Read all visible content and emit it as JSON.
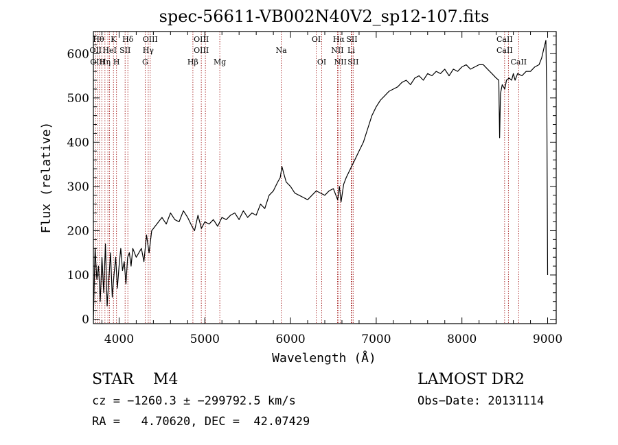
{
  "chart_data": {
    "type": "line",
    "title": "spec-56611-VB002N40V2_sp12-107.fits",
    "xlabel": "Wavelength (Å)",
    "ylabel": "Flux (relative)",
    "xlim": [
      3700,
      9100
    ],
    "ylim": [
      -10,
      650
    ],
    "xticks": [
      4000,
      5000,
      6000,
      7000,
      8000,
      9000
    ],
    "yticks": [
      0,
      100,
      200,
      300,
      400,
      500,
      600
    ],
    "grid": false,
    "series": [
      {
        "color": "#000000",
        "x": [
          3700,
          3720,
          3740,
          3760,
          3780,
          3800,
          3820,
          3840,
          3860,
          3880,
          3900,
          3920,
          3940,
          3960,
          3980,
          4000,
          4020,
          4040,
          4060,
          4080,
          4100,
          4120,
          4140,
          4160,
          4180,
          4200,
          4230,
          4260,
          4290,
          4320,
          4350,
          4380,
          4420,
          4460,
          4500,
          4550,
          4600,
          4650,
          4700,
          4750,
          4800,
          4850,
          4880,
          4920,
          4960,
          5000,
          5050,
          5100,
          5150,
          5200,
          5250,
          5300,
          5350,
          5400,
          5450,
          5500,
          5550,
          5600,
          5650,
          5700,
          5750,
          5800,
          5850,
          5880,
          5900,
          5920,
          5950,
          6000,
          6050,
          6100,
          6150,
          6200,
          6250,
          6300,
          6350,
          6400,
          6450,
          6500,
          6550,
          6570,
          6590,
          6620,
          6650,
          6700,
          6750,
          6800,
          6850,
          6900,
          6950,
          7000,
          7050,
          7100,
          7150,
          7200,
          7250,
          7300,
          7350,
          7400,
          7450,
          7500,
          7550,
          7600,
          7650,
          7700,
          7750,
          7800,
          7850,
          7900,
          7950,
          8000,
          8050,
          8100,
          8150,
          8200,
          8250,
          8300,
          8350,
          8400,
          8430,
          8440,
          8450,
          8470,
          8500,
          8520,
          8550,
          8580,
          8600,
          8620,
          8650,
          8700,
          8750,
          8800,
          8850,
          8900,
          8930,
          8960,
          8980,
          8990,
          9000
        ],
        "y": [
          0,
          160,
          90,
          120,
          40,
          140,
          60,
          170,
          30,
          90,
          150,
          50,
          100,
          140,
          70,
          120,
          160,
          110,
          130,
          80,
          140,
          150,
          120,
          160,
          150,
          140,
          150,
          160,
          130,
          190,
          150,
          200,
          210,
          220,
          230,
          215,
          240,
          225,
          220,
          245,
          230,
          210,
          200,
          235,
          205,
          220,
          215,
          225,
          210,
          230,
          225,
          235,
          240,
          225,
          245,
          230,
          240,
          235,
          260,
          250,
          280,
          290,
          310,
          320,
          345,
          330,
          310,
          300,
          285,
          280,
          275,
          270,
          280,
          290,
          285,
          280,
          290,
          295,
          270,
          300,
          265,
          305,
          320,
          340,
          360,
          380,
          400,
          430,
          460,
          480,
          495,
          505,
          515,
          520,
          525,
          535,
          540,
          530,
          545,
          550,
          540,
          555,
          550,
          560,
          555,
          565,
          550,
          565,
          560,
          570,
          575,
          565,
          570,
          575,
          575,
          565,
          555,
          545,
          540,
          410,
          510,
          530,
          520,
          540,
          545,
          540,
          555,
          540,
          555,
          550,
          560,
          560,
          570,
          575,
          590,
          615,
          630,
          500,
          100
        ]
      }
    ],
    "lines": [
      {
        "wavelength": 3726
      },
      {
        "wavelength": 3750
      },
      {
        "wavelength": 3771
      },
      {
        "wavelength": 3798
      },
      {
        "wavelength": 3835
      },
      {
        "wavelength": 3869
      },
      {
        "wavelength": 3889
      },
      {
        "wavelength": 3934
      },
      {
        "wavelength": 3970
      },
      {
        "wavelength": 4070
      },
      {
        "wavelength": 4102
      },
      {
        "wavelength": 4304
      },
      {
        "wavelength": 4340
      },
      {
        "wavelength": 4363
      },
      {
        "wavelength": 4861
      },
      {
        "wavelength": 4959
      },
      {
        "wavelength": 5007
      },
      {
        "wavelength": 5175
      },
      {
        "wavelength": 5892
      },
      {
        "wavelength": 6300
      },
      {
        "wavelength": 6364
      },
      {
        "wavelength": 6548
      },
      {
        "wavelength": 6563
      },
      {
        "wavelength": 6583
      },
      {
        "wavelength": 6708
      },
      {
        "wavelength": 6716
      },
      {
        "wavelength": 6731
      },
      {
        "wavelength": 8498
      },
      {
        "wavelength": 8542
      },
      {
        "wavelength": 8662
      }
    ],
    "line_labels": [
      {
        "text": "Hθ",
        "wavelength": 3760,
        "row": 0
      },
      {
        "text": "K",
        "wavelength": 3934,
        "row": 0
      },
      {
        "text": "Hδ",
        "wavelength": 4102,
        "row": 0
      },
      {
        "text": "OIII",
        "wavelength": 4363,
        "row": 0
      },
      {
        "text": "OIII",
        "wavelength": 4959,
        "row": 0
      },
      {
        "text": "OI",
        "wavelength": 6300,
        "row": 0
      },
      {
        "text": "Hα",
        "wavelength": 6563,
        "row": 0
      },
      {
        "text": "SII",
        "wavelength": 6716,
        "row": 0
      },
      {
        "text": "CaII",
        "wavelength": 8498,
        "row": 0
      },
      {
        "text": "OII",
        "wavelength": 3726,
        "row": 1
      },
      {
        "text": "HeI",
        "wavelength": 3889,
        "row": 1
      },
      {
        "text": "SII",
        "wavelength": 4070,
        "row": 1
      },
      {
        "text": "Hγ",
        "wavelength": 4340,
        "row": 1
      },
      {
        "text": "OIII",
        "wavelength": 4959,
        "row": 1
      },
      {
        "text": "Na",
        "wavelength": 5892,
        "row": 1
      },
      {
        "text": "NII",
        "wavelength": 6548,
        "row": 1
      },
      {
        "text": "Li",
        "wavelength": 6708,
        "row": 1
      },
      {
        "text": "CaII",
        "wavelength": 8498,
        "row": 1
      },
      {
        "text": "OIII",
        "wavelength": 3750,
        "row": 2
      },
      {
        "text": "Hη",
        "wavelength": 3835,
        "row": 2
      },
      {
        "text": "H",
        "wavelength": 3970,
        "row": 2
      },
      {
        "text": "G",
        "wavelength": 4304,
        "row": 2
      },
      {
        "text": "Hβ",
        "wavelength": 4861,
        "row": 2
      },
      {
        "text": "Mg",
        "wavelength": 5175,
        "row": 2
      },
      {
        "text": "OI",
        "wavelength": 6364,
        "row": 2
      },
      {
        "text": "NII",
        "wavelength": 6583,
        "row": 2
      },
      {
        "text": "SII",
        "wavelength": 6731,
        "row": 2
      },
      {
        "text": "CaII",
        "wavelength": 8662,
        "row": 2
      }
    ]
  },
  "info": {
    "class_line": "STAR    M4",
    "survey": "LAMOST DR2",
    "cz": "cz = −1260.3 ± −299792.5 km/s",
    "obs_date": "Obs−Date: 20131114",
    "coords": "RA =   4.70620, DEC =  42.07429"
  },
  "colors": {
    "line_marker": "#990000",
    "spectrum": "#000000",
    "axes": "#000000"
  }
}
